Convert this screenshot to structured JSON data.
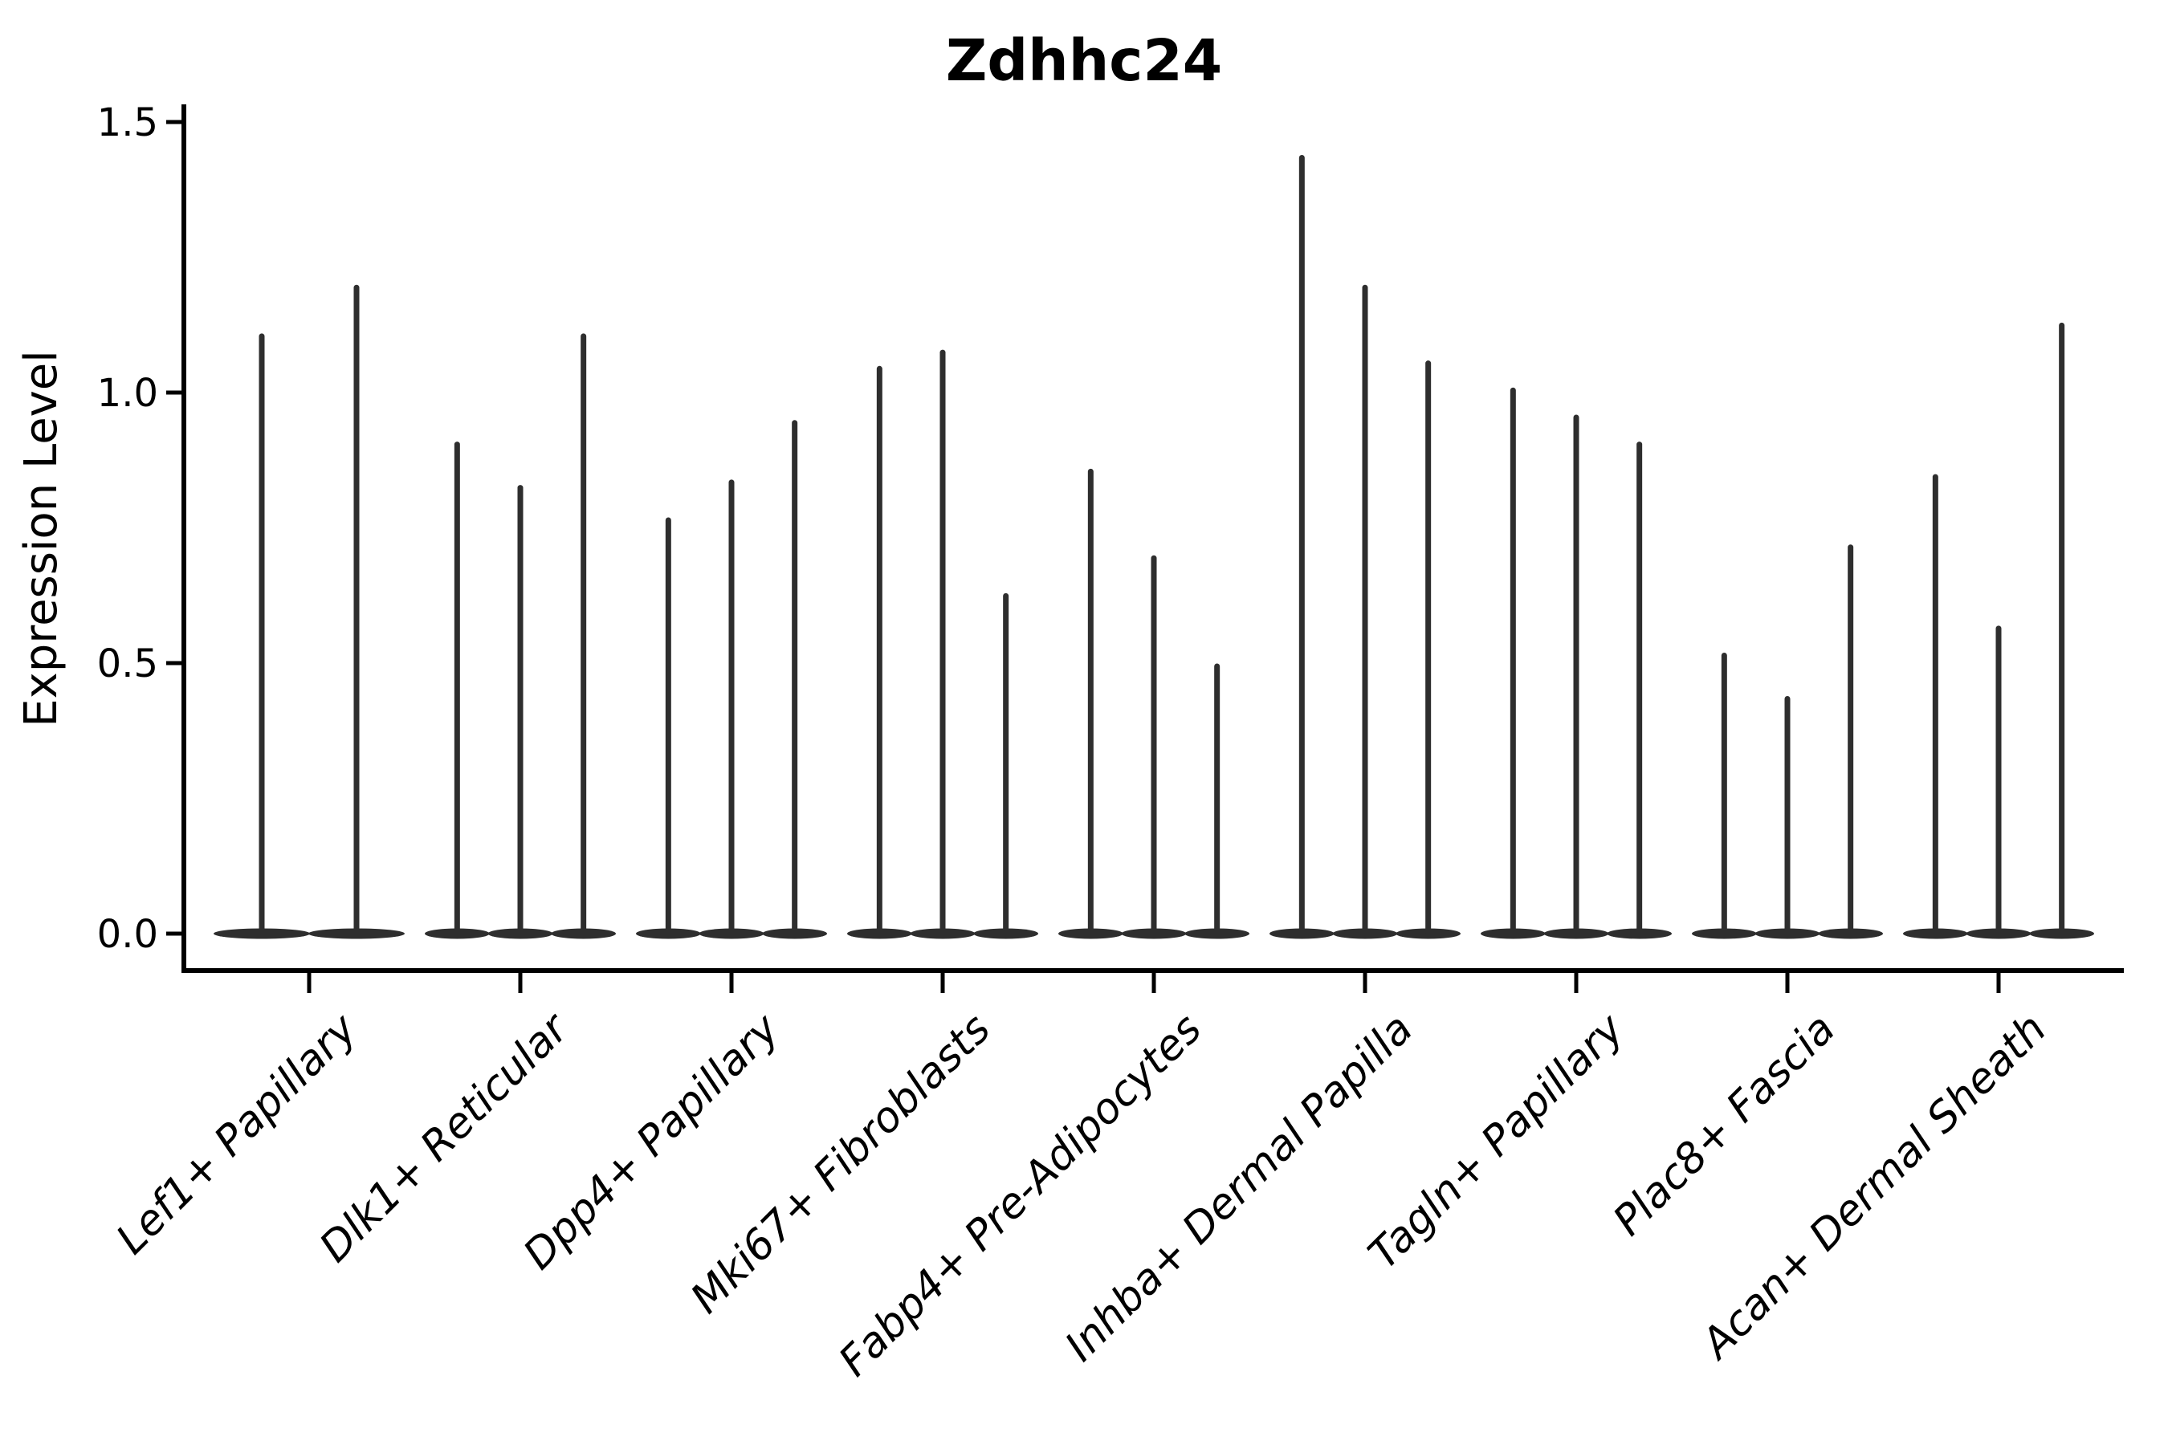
{
  "figure": {
    "title": "Zdhhc24",
    "ylabel": "Expression Level"
  },
  "chart_data": {
    "type": "violin",
    "title": "Zdhhc24",
    "xlabel": "",
    "ylabel": "Expression Level",
    "ylim": [
      -0.07,
      1.53
    ],
    "grid": false,
    "legend": "none",
    "violin_style": "very narrow spikes rising from a thin flattened base lens at y=0",
    "violin_color": "#2e2e2e",
    "axis_color": "#000000",
    "yticks": [
      {
        "value": 0.0,
        "label": "0.0"
      },
      {
        "value": 0.5,
        "label": "0.5"
      },
      {
        "value": 1.0,
        "label": "1.0"
      },
      {
        "value": 1.5,
        "label": "1.5"
      }
    ],
    "categories": [
      "Lef1+ Papillary",
      "Dlk1+ Reticular",
      "Dpp4+ Papillary",
      "Mki67+ Fibroblasts",
      "Fabp4+ Pre-Adipocytes",
      "Inhba+ Dermal Papilla",
      "Tagln+ Papillary",
      "Plac8+ Fascia",
      "Acan+ Dermal Sheath"
    ],
    "groups": [
      {
        "label": "Lef1+ Papillary",
        "violin_maxima": [
          1.11,
          1.2
        ]
      },
      {
        "label": "Dlk1+ Reticular",
        "violin_maxima": [
          0.91,
          0.83,
          1.11
        ]
      },
      {
        "label": "Dpp4+ Papillary",
        "violin_maxima": [
          0.77,
          0.84,
          0.95
        ]
      },
      {
        "label": "Mki67+ Fibroblasts",
        "violin_maxima": [
          1.05,
          1.08,
          0.63
        ]
      },
      {
        "label": "Fabp4+ Pre-Adipocytes",
        "violin_maxima": [
          0.86,
          0.7,
          0.5
        ]
      },
      {
        "label": "Inhba+ Dermal Papilla",
        "violin_maxima": [
          1.44,
          1.2,
          1.06
        ]
      },
      {
        "label": "Tagln+ Papillary",
        "violin_maxima": [
          1.01,
          0.96,
          0.91
        ]
      },
      {
        "label": "Plac8+ Fascia",
        "violin_maxima": [
          0.52,
          0.44,
          0.72
        ]
      },
      {
        "label": "Acan+ Dermal Sheath",
        "violin_maxima": [
          0.85,
          0.57,
          1.13
        ]
      }
    ]
  }
}
